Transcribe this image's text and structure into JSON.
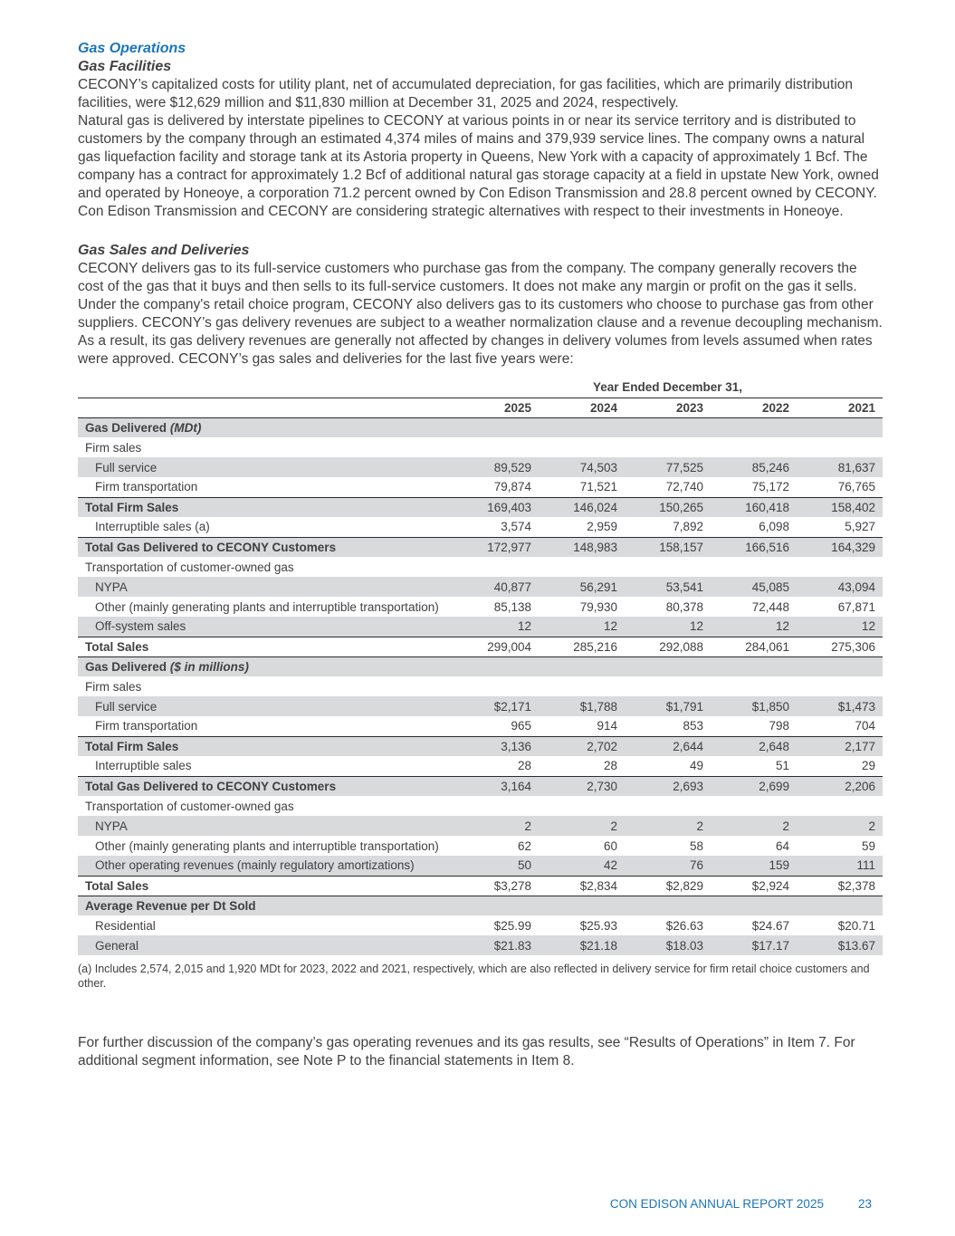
{
  "doc": {
    "heading": "Gas Operations",
    "sub_facilities": "Gas Facilities",
    "para_facilities_1": "CECONY’s capitalized costs for utility plant, net of accumulated depreciation, for gas facilities, which are primarily distribution facilities, were $12,629 million and $11,830 million at December 31, 2025 and 2024, respectively.",
    "para_facilities_2": "Natural gas is delivered by interstate pipelines to CECONY at various points in or near its service territory and is distributed to customers by the company through an estimated 4,374 miles of mains and 379,939 service lines. The company owns a natural gas liquefaction facility and storage tank at its Astoria property in Queens, New York with a capacity of approximately 1 Bcf. The company has a contract for approximately 1.2 Bcf of additional natural gas storage capacity at a field in upstate New York, owned and operated by Honeoye, a corporation 71.2 percent owned by Con Edison Transmission and 28.8 percent owned by CECONY. Con Edison Transmission and CECONY are considering strategic alternatives with respect to their investments in Honeoye.",
    "sub_sales": "Gas Sales and Deliveries",
    "para_sales": "CECONY delivers gas to its full-service customers who purchase gas from the company. The company generally recovers the cost of the gas that it buys and then sells to its full-service customers. It does not make any margin or profit on the gas it sells. Under the company's retail choice program, CECONY also delivers gas to its customers who choose to purchase gas from other suppliers. CECONY’s gas delivery revenues are subject to a weather normalization clause and a revenue decoupling mechanism. As a result, its gas delivery revenues are generally not affected by changes in delivery volumes from levels assumed when rates were approved. CECONY’s gas sales and deliveries for the last five years were:",
    "footnote": "(a) Includes 2,574, 2,015 and 1,920 MDt for 2023, 2022 and 2021, respectively, which are also reflected in delivery service for firm retail choice customers and other.",
    "para_further": "For further discussion of the company’s gas operating revenues and its gas results, see “Results of Operations” in Item 7. For additional segment information, see Note P to the financial statements in Item 8.",
    "footer_title": "CON EDISON ANNUAL REPORT 2025",
    "page_number": "23"
  },
  "colors": {
    "accent_blue": "#1b75bc",
    "body_text": "#414042",
    "row_shade": "#d8dadb"
  },
  "table": {
    "span_header": "Year Ended December 31,",
    "years": [
      "2025",
      "2024",
      "2023",
      "2022",
      "2021"
    ],
    "rows": [
      {
        "type": "section",
        "label": "Gas Delivered",
        "label_italic": "(MDt)",
        "shaded": true,
        "values": []
      },
      {
        "type": "group",
        "label": "Firm sales",
        "shaded": false,
        "values": []
      },
      {
        "type": "data",
        "label": "Full service",
        "indent": true,
        "shaded": true,
        "values": [
          "89,529",
          "74,503",
          "77,525",
          "85,246",
          "81,637"
        ]
      },
      {
        "type": "data",
        "label": "Firm transportation",
        "indent": true,
        "shaded": false,
        "values": [
          "79,874",
          "71,521",
          "72,740",
          "75,172",
          "76,765"
        ]
      },
      {
        "type": "total",
        "label": "Total Firm Sales",
        "shaded": true,
        "border_top": true,
        "values": [
          "169,403",
          "146,024",
          "150,265",
          "160,418",
          "158,402"
        ]
      },
      {
        "type": "data",
        "label": "Interruptible sales (a)",
        "indent": true,
        "shaded": false,
        "values": [
          "3,574",
          "2,959",
          "7,892",
          "6,098",
          "5,927"
        ]
      },
      {
        "type": "total",
        "label": "Total Gas Delivered to CECONY Customers",
        "shaded": true,
        "border_top": true,
        "values": [
          "172,977",
          "148,983",
          "158,157",
          "166,516",
          "164,329"
        ]
      },
      {
        "type": "group",
        "label": "Transportation of customer-owned gas",
        "shaded": false,
        "values": []
      },
      {
        "type": "data",
        "label": "NYPA",
        "indent": true,
        "shaded": true,
        "values": [
          "40,877",
          "56,291",
          "53,541",
          "45,085",
          "43,094"
        ]
      },
      {
        "type": "data",
        "label": "Other (mainly generating plants and interruptible transportation)",
        "indent": true,
        "shaded": false,
        "values": [
          "85,138",
          "79,930",
          "80,378",
          "72,448",
          "67,871"
        ]
      },
      {
        "type": "data",
        "label": "Off-system sales",
        "indent": true,
        "shaded": true,
        "values": [
          "12",
          "12",
          "12",
          "12",
          "12"
        ]
      },
      {
        "type": "total",
        "label": "Total Sales",
        "shaded": false,
        "border_top": true,
        "border_bottom": true,
        "values": [
          "299,004",
          "285,216",
          "292,088",
          "284,061",
          "275,306"
        ]
      },
      {
        "type": "section",
        "label": "Gas Delivered",
        "label_italic": "($ in millions)",
        "shaded": true,
        "values": []
      },
      {
        "type": "group",
        "label": "Firm sales",
        "shaded": false,
        "values": []
      },
      {
        "type": "data",
        "label": "Full service",
        "indent": true,
        "shaded": true,
        "values": [
          "$2,171",
          "$1,788",
          "$1,791",
          "$1,850",
          "$1,473"
        ]
      },
      {
        "type": "data",
        "label": "Firm transportation",
        "indent": true,
        "shaded": false,
        "values": [
          "965",
          "914",
          "853",
          "798",
          "704"
        ]
      },
      {
        "type": "total",
        "label": "Total Firm Sales",
        "shaded": true,
        "border_top": true,
        "values": [
          "3,136",
          "2,702",
          "2,644",
          "2,648",
          "2,177"
        ]
      },
      {
        "type": "data",
        "label": "Interruptible sales",
        "indent": true,
        "shaded": false,
        "values": [
          "28",
          "28",
          "49",
          "51",
          "29"
        ]
      },
      {
        "type": "total",
        "label": "Total Gas Delivered to CECONY Customers",
        "shaded": true,
        "border_top": true,
        "values": [
          "3,164",
          "2,730",
          "2,693",
          "2,699",
          "2,206"
        ]
      },
      {
        "type": "group",
        "label": "Transportation of customer-owned gas",
        "shaded": false,
        "values": []
      },
      {
        "type": "data",
        "label": "NYPA",
        "indent": true,
        "shaded": true,
        "values": [
          "2",
          "2",
          "2",
          "2",
          "2"
        ]
      },
      {
        "type": "data",
        "label": "Other (mainly generating plants and interruptible transportation)",
        "indent": true,
        "shaded": false,
        "values": [
          "62",
          "60",
          "58",
          "64",
          "59"
        ]
      },
      {
        "type": "data",
        "label": "Other operating revenues (mainly regulatory amortizations)",
        "indent": true,
        "shaded": true,
        "values": [
          "50",
          "42",
          "76",
          "159",
          "111"
        ]
      },
      {
        "type": "total",
        "label": "Total Sales",
        "shaded": false,
        "border_top": true,
        "border_bottom": true,
        "values": [
          "$3,278",
          "$2,834",
          "$2,829",
          "$2,924",
          "$2,378"
        ]
      },
      {
        "type": "section",
        "label": "Average Revenue per Dt Sold",
        "shaded": true,
        "values": []
      },
      {
        "type": "data",
        "label": "Residential",
        "indent": true,
        "shaded": false,
        "values": [
          "$25.99",
          "$25.93",
          "$26.63",
          "$24.67",
          "$20.71"
        ]
      },
      {
        "type": "data",
        "label": "General",
        "indent": true,
        "shaded": true,
        "values": [
          "$21.83",
          "$21.18",
          "$18.03",
          "$17.17",
          "$13.67"
        ]
      }
    ]
  }
}
